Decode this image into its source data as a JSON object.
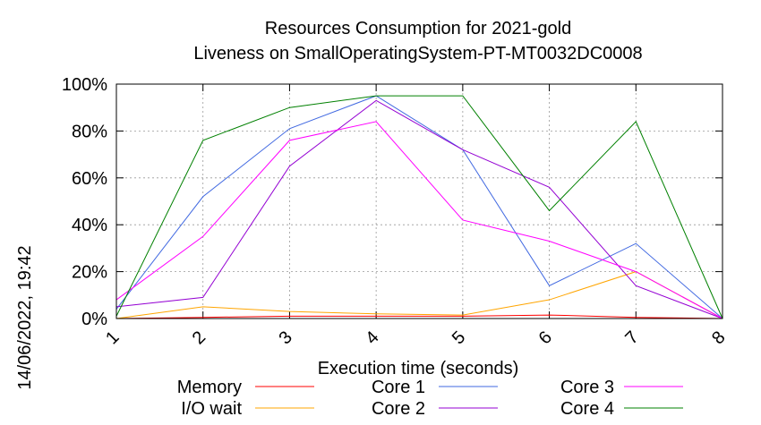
{
  "chart_data": {
    "type": "line",
    "title": "Resources Consumption for 2021-gold",
    "subtitle": "Liveness on SmallOperatingSystem-PT-MT0032DC0008",
    "xlabel": "Execution time (seconds)",
    "ylabel": "",
    "side_label": "14/06/2022, 19:42",
    "x": [
      1,
      2,
      3,
      4,
      5,
      6,
      7,
      8
    ],
    "xlim": [
      1,
      8
    ],
    "ylim": [
      0,
      100
    ],
    "yticks": [
      0,
      20,
      40,
      60,
      80,
      100
    ],
    "ytick_labels": [
      "0%",
      "20%",
      "40%",
      "60%",
      "80%",
      "100%"
    ],
    "xtick_labels": [
      "1",
      "2",
      "3",
      "4",
      "5",
      "6",
      "7",
      "8"
    ],
    "grid": true,
    "legend_position": "bottom",
    "series": [
      {
        "name": "Memory",
        "color": "#ff0000",
        "values": [
          0,
          0.5,
          1,
          1,
          1,
          1.5,
          0.5,
          0
        ]
      },
      {
        "name": "I/O wait",
        "color": "#ffa500",
        "values": [
          0,
          5,
          3,
          2,
          1.5,
          8,
          20,
          0
        ]
      },
      {
        "name": "Core 1",
        "color": "#4169e1",
        "values": [
          4,
          52,
          81,
          95,
          72,
          14,
          32,
          0
        ]
      },
      {
        "name": "Core 2",
        "color": "#9400d3",
        "values": [
          5,
          9,
          65,
          93,
          72,
          56,
          14,
          0
        ]
      },
      {
        "name": "Core 3",
        "color": "#ff00ff",
        "values": [
          8,
          35,
          76,
          84,
          42,
          33,
          20,
          0
        ]
      },
      {
        "name": "Core 4",
        "color": "#008000",
        "values": [
          1,
          76,
          90,
          95,
          95,
          46,
          84,
          0
        ]
      }
    ]
  }
}
